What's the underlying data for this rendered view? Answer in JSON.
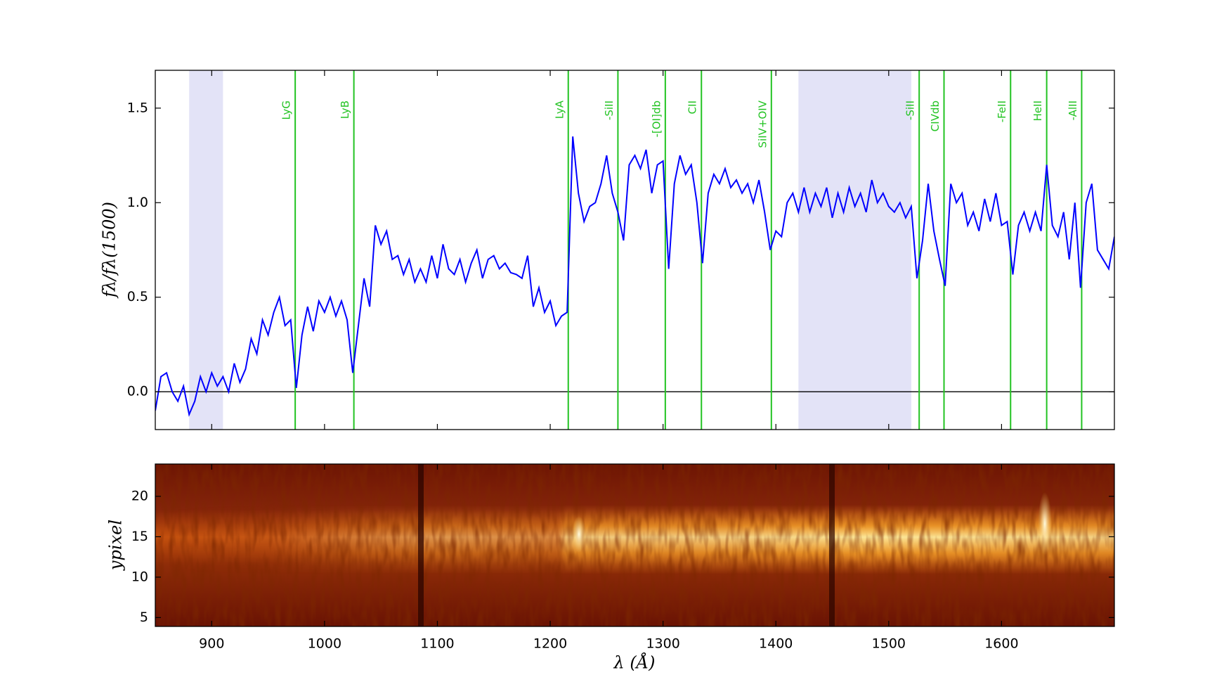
{
  "chart_data": [
    {
      "type": "line",
      "ylabel": "fλ/fλ(1500)",
      "xlim": [
        850,
        1700
      ],
      "ylim": [
        -0.2,
        1.7
      ],
      "xticks": [
        900,
        1000,
        1100,
        1200,
        1300,
        1400,
        1500,
        1600
      ],
      "yticks": [
        {
          "value": 0,
          "label": "0.0"
        },
        0.5,
        {
          "value": 1,
          "label": "1.0"
        },
        1.5
      ],
      "color": "#0000ff",
      "x": [
        850,
        855,
        860,
        865,
        870,
        875,
        880,
        885,
        890,
        895,
        900,
        905,
        910,
        915,
        920,
        925,
        930,
        935,
        940,
        945,
        950,
        955,
        960,
        965,
        970,
        975,
        980,
        985,
        990,
        995,
        1000,
        1005,
        1010,
        1015,
        1020,
        1025,
        1030,
        1035,
        1040,
        1045,
        1050,
        1055,
        1060,
        1065,
        1070,
        1075,
        1080,
        1085,
        1090,
        1095,
        1100,
        1105,
        1110,
        1115,
        1120,
        1125,
        1130,
        1135,
        1140,
        1145,
        1150,
        1155,
        1160,
        1165,
        1170,
        1175,
        1180,
        1185,
        1190,
        1195,
        1200,
        1205,
        1210,
        1215,
        1220,
        1225,
        1230,
        1235,
        1240,
        1245,
        1250,
        1255,
        1260,
        1265,
        1270,
        1275,
        1280,
        1285,
        1290,
        1295,
        1300,
        1305,
        1310,
        1315,
        1320,
        1325,
        1330,
        1335,
        1340,
        1345,
        1350,
        1355,
        1360,
        1365,
        1370,
        1375,
        1380,
        1385,
        1390,
        1395,
        1400,
        1405,
        1410,
        1415,
        1420,
        1425,
        1430,
        1435,
        1440,
        1445,
        1450,
        1455,
        1460,
        1465,
        1470,
        1475,
        1480,
        1485,
        1490,
        1495,
        1500,
        1505,
        1510,
        1515,
        1520,
        1525,
        1530,
        1535,
        1540,
        1545,
        1550,
        1555,
        1560,
        1565,
        1570,
        1575,
        1580,
        1585,
        1590,
        1595,
        1600,
        1605,
        1610,
        1615,
        1620,
        1625,
        1630,
        1635,
        1640,
        1645,
        1650,
        1655,
        1660,
        1665,
        1670,
        1675,
        1680,
        1685,
        1690,
        1695,
        1700
      ],
      "values": [
        -0.1,
        0.08,
        0.1,
        0.0,
        -0.05,
        0.03,
        -0.12,
        -0.05,
        0.08,
        0.0,
        0.1,
        0.03,
        0.08,
        0.0,
        0.15,
        0.05,
        0.12,
        0.28,
        0.2,
        0.38,
        0.3,
        0.42,
        0.5,
        0.35,
        0.38,
        0.02,
        0.3,
        0.45,
        0.32,
        0.48,
        0.42,
        0.5,
        0.4,
        0.48,
        0.38,
        0.1,
        0.35,
        0.6,
        0.45,
        0.88,
        0.78,
        0.85,
        0.7,
        0.72,
        0.62,
        0.7,
        0.58,
        0.65,
        0.58,
        0.72,
        0.6,
        0.78,
        0.65,
        0.62,
        0.7,
        0.58,
        0.68,
        0.75,
        0.6,
        0.7,
        0.72,
        0.65,
        0.68,
        0.63,
        0.62,
        0.6,
        0.72,
        0.45,
        0.55,
        0.42,
        0.48,
        0.35,
        0.4,
        0.42,
        1.35,
        1.05,
        0.9,
        0.98,
        1.0,
        1.1,
        1.25,
        1.05,
        0.95,
        0.8,
        1.2,
        1.25,
        1.18,
        1.28,
        1.05,
        1.2,
        1.22,
        0.65,
        1.1,
        1.25,
        1.15,
        1.2,
        1.0,
        0.68,
        1.05,
        1.15,
        1.1,
        1.18,
        1.08,
        1.12,
        1.05,
        1.1,
        1.0,
        1.12,
        0.95,
        0.75,
        0.85,
        0.82,
        1.0,
        1.05,
        0.95,
        1.08,
        0.95,
        1.05,
        0.98,
        1.08,
        0.92,
        1.05,
        0.95,
        1.08,
        0.98,
        1.05,
        0.95,
        1.12,
        1.0,
        1.05,
        0.98,
        0.95,
        1.0,
        0.92,
        0.98,
        0.6,
        0.8,
        1.1,
        0.85,
        0.7,
        0.56,
        1.1,
        1.0,
        1.05,
        0.88,
        0.95,
        0.85,
        1.02,
        0.9,
        1.05,
        0.88,
        0.9,
        0.62,
        0.88,
        0.95,
        0.85,
        0.95,
        0.85,
        1.2,
        0.88,
        0.82,
        0.95,
        0.7,
        1.0,
        0.55,
        1.0,
        1.1,
        0.75,
        0.7,
        0.65,
        0.82
      ],
      "hlines": [
        0
      ],
      "vline_color": "#22c322",
      "vlines": [
        {
          "x": 974,
          "label": "LyG"
        },
        {
          "x": 1026,
          "label": "LyB"
        },
        {
          "x": 1216,
          "label": "LyA"
        },
        {
          "x": 1260,
          "label": "-SiII"
        },
        {
          "x": 1302,
          "label": "-[OI]db"
        },
        {
          "x": 1334,
          "label": "CII"
        },
        {
          "x": 1396,
          "label": "SiIV+OIV"
        },
        {
          "x": 1527,
          "label": "-SiII"
        },
        {
          "x": 1549,
          "label": "CIVdb"
        },
        {
          "x": 1608,
          "label": "-FeII"
        },
        {
          "x": 1640,
          "label": "HeII"
        },
        {
          "x": 1671,
          "label": "-AlII"
        }
      ],
      "shade_color": "#e3e3f7",
      "shaded": [
        [
          880,
          910
        ],
        [
          1420,
          1520
        ]
      ]
    },
    {
      "type": "image",
      "ylabel": "ypixel",
      "xlabel": "λ   (Å)",
      "colormap": "afmhot",
      "xlim": [
        850,
        1700
      ],
      "ylim": [
        3.9,
        24
      ],
      "xticks": [
        900,
        1000,
        1100,
        1200,
        1300,
        1400,
        1500,
        1600
      ],
      "yticks": [
        5,
        10,
        15,
        20
      ]
    }
  ]
}
